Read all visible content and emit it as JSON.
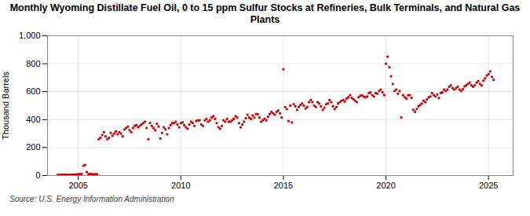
{
  "chart_data": {
    "type": "scatter",
    "title": "Monthly Wyoming Distillate Fuel Oil, 0 to 15 ppm Sulfur Stocks at Refineries, Bulk Terminals, and Natural Gas Plants",
    "ylabel": "Thousand Barrels",
    "source": "Source: U.S. Energy Information Administration",
    "color": "#cc0000",
    "marker": "square",
    "grid": true,
    "xlim": [
      2003.5,
      2026.2
    ],
    "xticks": [
      2005,
      2010,
      2015,
      2020,
      2025
    ],
    "ylim": [
      0,
      1000
    ],
    "yticks": [
      0,
      200,
      400,
      600,
      800,
      {
        "value": 1000,
        "label": "1,000"
      }
    ],
    "x": [
      2004.0,
      2004.083,
      2004.167,
      2004.25,
      2004.333,
      2004.417,
      2004.5,
      2004.583,
      2004.667,
      2004.75,
      2004.833,
      2004.917,
      2005.0,
      2005.083,
      2005.167,
      2005.25,
      2005.333,
      2005.417,
      2005.5,
      2005.583,
      2005.667,
      2005.75,
      2005.833,
      2005.917,
      2006.0,
      2006.083,
      2006.167,
      2006.25,
      2006.333,
      2006.417,
      2006.5,
      2006.583,
      2006.667,
      2006.75,
      2006.833,
      2006.917,
      2007.0,
      2007.083,
      2007.167,
      2007.25,
      2007.333,
      2007.417,
      2007.5,
      2007.583,
      2007.667,
      2007.75,
      2007.833,
      2007.917,
      2008.0,
      2008.083,
      2008.167,
      2008.25,
      2008.333,
      2008.417,
      2008.5,
      2008.583,
      2008.667,
      2008.75,
      2008.833,
      2008.917,
      2009.0,
      2009.083,
      2009.167,
      2009.25,
      2009.333,
      2009.417,
      2009.5,
      2009.583,
      2009.667,
      2009.75,
      2009.833,
      2009.917,
      2010.0,
      2010.083,
      2010.167,
      2010.25,
      2010.333,
      2010.417,
      2010.5,
      2010.583,
      2010.667,
      2010.75,
      2010.833,
      2010.917,
      2011.0,
      2011.083,
      2011.167,
      2011.25,
      2011.333,
      2011.417,
      2011.5,
      2011.583,
      2011.667,
      2011.75,
      2011.833,
      2011.917,
      2012.0,
      2012.083,
      2012.167,
      2012.25,
      2012.333,
      2012.417,
      2012.5,
      2012.583,
      2012.667,
      2012.75,
      2012.833,
      2012.917,
      2013.0,
      2013.083,
      2013.167,
      2013.25,
      2013.333,
      2013.417,
      2013.5,
      2013.583,
      2013.667,
      2013.75,
      2013.833,
      2013.917,
      2014.0,
      2014.083,
      2014.167,
      2014.25,
      2014.333,
      2014.417,
      2014.5,
      2014.583,
      2014.667,
      2014.75,
      2014.833,
      2014.917,
      2015.0,
      2015.083,
      2015.167,
      2015.25,
      2015.333,
      2015.417,
      2015.5,
      2015.583,
      2015.667,
      2015.75,
      2015.833,
      2015.917,
      2016.0,
      2016.083,
      2016.167,
      2016.25,
      2016.333,
      2016.417,
      2016.5,
      2016.583,
      2016.667,
      2016.75,
      2016.833,
      2016.917,
      2017.0,
      2017.083,
      2017.167,
      2017.25,
      2017.333,
      2017.417,
      2017.5,
      2017.583,
      2017.667,
      2017.75,
      2017.833,
      2017.917,
      2018.0,
      2018.083,
      2018.167,
      2018.25,
      2018.333,
      2018.417,
      2018.5,
      2018.583,
      2018.667,
      2018.75,
      2018.833,
      2018.917,
      2019.0,
      2019.083,
      2019.167,
      2019.25,
      2019.333,
      2019.417,
      2019.5,
      2019.583,
      2019.667,
      2019.75,
      2019.833,
      2019.917,
      2020.0,
      2020.083,
      2020.167,
      2020.25,
      2020.333,
      2020.417,
      2020.5,
      2020.583,
      2020.667,
      2020.75,
      2020.833,
      2020.917,
      2021.0,
      2021.083,
      2021.167,
      2021.25,
      2021.333,
      2021.417,
      2021.5,
      2021.583,
      2021.667,
      2021.75,
      2021.833,
      2021.917,
      2022.0,
      2022.083,
      2022.167,
      2022.25,
      2022.333,
      2022.417,
      2022.5,
      2022.583,
      2022.667,
      2022.75,
      2022.833,
      2022.917,
      2023.0,
      2023.083,
      2023.167,
      2023.25,
      2023.333,
      2023.417,
      2023.5,
      2023.583,
      2023.667,
      2023.75,
      2023.833,
      2023.917,
      2024.0,
      2024.083,
      2024.167,
      2024.25,
      2024.333,
      2024.417,
      2024.5,
      2024.583,
      2024.667,
      2024.75,
      2024.833,
      2024.917,
      2025.0,
      2025.083,
      2025.167,
      2025.25
    ],
    "values": [
      5,
      4,
      6,
      5,
      7,
      5,
      6,
      5,
      6,
      7,
      6,
      8,
      9,
      10,
      12,
      70,
      75,
      25,
      10,
      12,
      10,
      8,
      10,
      9,
      260,
      270,
      290,
      310,
      280,
      260,
      270,
      305,
      285,
      300,
      315,
      295,
      310,
      300,
      280,
      330,
      340,
      350,
      325,
      310,
      340,
      355,
      360,
      345,
      355,
      365,
      375,
      385,
      340,
      260,
      375,
      355,
      340,
      325,
      370,
      350,
      265,
      305,
      345,
      330,
      295,
      340,
      360,
      375,
      375,
      385,
      365,
      345,
      375,
      380,
      360,
      345,
      335,
      365,
      385,
      375,
      355,
      390,
      395,
      395,
      365,
      355,
      395,
      405,
      385,
      395,
      415,
      425,
      405,
      375,
      345,
      335,
      355,
      395,
      385,
      405,
      385,
      385,
      395,
      405,
      425,
      415,
      375,
      345,
      365,
      385,
      410,
      435,
      415,
      405,
      430,
      415,
      440,
      438,
      415,
      385,
      395,
      405,
      395,
      420,
      440,
      455,
      445,
      435,
      455,
      465,
      445,
      415,
      760,
      490,
      475,
      390,
      500,
      380,
      510,
      495,
      470,
      490,
      505,
      515,
      500,
      480,
      490,
      525,
      540,
      525,
      500,
      490,
      525,
      515,
      495,
      470,
      485,
      510,
      515,
      540,
      525,
      495,
      475,
      490,
      515,
      525,
      535,
      540,
      530,
      550,
      560,
      575,
      555,
      545,
      535,
      525,
      560,
      570,
      575,
      565,
      560,
      565,
      590,
      595,
      575,
      565,
      590,
      585,
      605,
      615,
      595,
      575,
      800,
      850,
      775,
      710,
      655,
      605,
      615,
      585,
      605,
      415,
      575,
      560,
      550,
      575,
      575,
      555,
      470,
      455,
      475,
      495,
      505,
      515,
      535,
      525,
      545,
      560,
      565,
      590,
      575,
      565,
      580,
      555,
      590,
      595,
      615,
      605,
      615,
      635,
      645,
      625,
      615,
      625,
      635,
      615,
      605,
      618,
      638,
      645,
      655,
      665,
      645,
      635,
      645,
      665,
      675,
      655,
      645,
      678,
      695,
      715,
      725,
      745,
      705,
      685
    ]
  }
}
